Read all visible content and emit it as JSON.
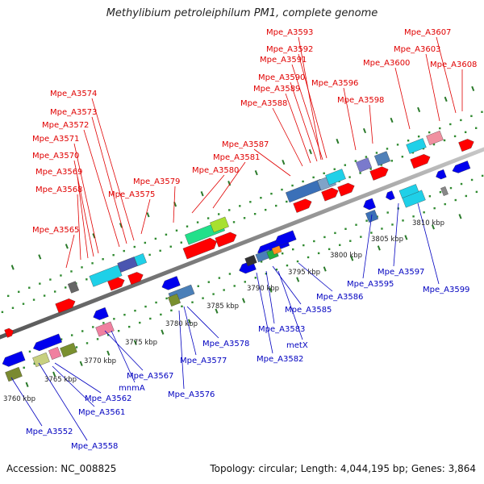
{
  "title": "Methylibium petroleiphilum PM1, complete genome",
  "footer": {
    "accession": "Accession: NC_008825",
    "stats": "Topology: circular; Length: 4,044,195 bp; Genes: 3,864"
  },
  "scale_labels": [
    "3760 kbp",
    "3765 kbp",
    "3770 kbp",
    "3775 kbp",
    "3780 kbp",
    "3785 kbp",
    "3790 kbp",
    "3795 kbp",
    "3800 kbp",
    "3805 kbp",
    "3810 kbp"
  ],
  "colors": {
    "forward_label": "#e00000",
    "reverse_label": "#0000c0",
    "forward_feature": "#ff0000",
    "reverse_feature": "#0000ee"
  },
  "top_labels": [
    "Mpe_A3593",
    "Mpe_A3592",
    "Mpe_A3591",
    "Mpe_A3590",
    "Mpe_A3589",
    "Mpe_A3588",
    "Mpe_A3596",
    "Mpe_A3598",
    "Mpe_A3607",
    "Mpe_A3603",
    "Mpe_A3600",
    "Mpe_A3608",
    "Mpe_A3574",
    "Mpe_A3573",
    "Mpe_A3572",
    "Mpe_A3571",
    "Mpe_A3570",
    "Mpe_A3569",
    "Mpe_A3568",
    "Mpe_A3587",
    "Mpe_A3581",
    "Mpe_A3580",
    "Mpe_A3579",
    "Mpe_A3575",
    "Mpe_A3565"
  ],
  "bottom_labels": [
    "Mpe_A3595",
    "Mpe_A3597",
    "Mpe_A3599",
    "Mpe_A3586",
    "Mpe_A3585",
    "Mpe_A3583",
    "metX",
    "Mpe_A3582",
    "Mpe_A3578",
    "Mpe_A3577",
    "Mpe_A3576",
    "Mpe_A3567",
    "mnmA",
    "Mpe_A3562",
    "Mpe_A3561",
    "Mpe_A3552",
    "Mpe_A3558"
  ]
}
